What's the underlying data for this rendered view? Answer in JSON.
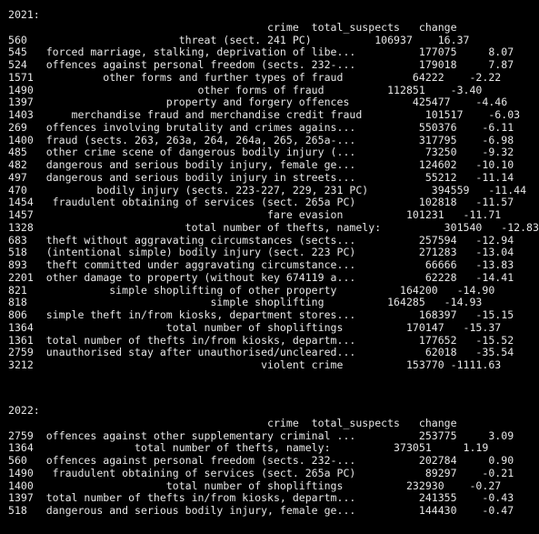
{
  "output": {
    "block_2021": {
      "heading": "2021:",
      "header": "                                         crime  total_suspects   change",
      "rows": [
        "560                        threat (sect. 241 PC)          106937    16.37",
        "545   forced marriage, stalking, deprivation of libe...          177075     8.07",
        "524   offences against personal freedom (sects. 232-...          179018     7.87",
        "1571           other forms and further types of fraud           64222    -2.22",
        "1490                          other forms of fraud          112851    -3.40",
        "1397                     property and forgery offences          425477    -4.46",
        "1403      merchandise fraud and merchandise credit fraud          101517    -6.03",
        "269   offences involving brutality and crimes agains...          550376    -6.11",
        "1400  fraud (sects. 263, 263a, 264, 264a, 265, 265a-...          317795    -6.98",
        "485   other crime scene of dangerous bodily injury (...           73250    -9.32",
        "482   dangerous and serious bodily injury, female ge...          124602   -10.10",
        "497   dangerous and serious bodily injury in streets...           55212   -11.14",
        "470           bodily injury (sects. 223-227, 229, 231 PC)          394559   -11.44",
        "1454   fraudulent obtaining of services (sect. 265a PC)          102818   -11.57",
        "1457                                     fare evasion          101231   -11.71",
        "1328                        total number of thefts, namely:          301540   -12.83",
        "683   theft without aggravating circumstances (sects...          257594   -12.94",
        "518   (intentional simple) bodily injury (sect. 223 PC)          271283   -13.04",
        "893   theft committed under aggravating circumstance...           66666   -13.83",
        "2201  other damage to property (without key 674119 a...           62228   -14.41",
        "821             simple shoplifting of other property          164200   -14.90",
        "818                             simple shoplifting          164285   -14.93",
        "806   simple theft in/from kiosks, department stores...          168397   -15.15",
        "1364                     total number of shopliftings          170147   -15.37",
        "1361  total number of thefts in/from kiosks, departm...          177652   -15.52",
        "2759  unauthorised stay after unauthorised/uncleared...           62018   -35.54",
        "3212                                    violent crime          153770 -1111.63"
      ]
    },
    "block_2022": {
      "heading": "2022:",
      "header": "                                         crime  total_suspects   change",
      "rows": [
        "2759  offences against other supplementary criminal ...          253775     3.09",
        "1364                total number of thefts, namely:          373051     1.19",
        "560   offences against personal freedom (sects. 232-...          202784     0.90",
        "1490   fraudulent obtaining of services (sect. 265a PC)           89297    -0.21",
        "1400                     total number of shopliftings          232930    -0.27",
        "1397  total number of thefts in/from kiosks, departm...          241355    -0.43",
        "518   dangerous and serious bodily injury, female ge...          144430    -0.47"
      ]
    }
  }
}
